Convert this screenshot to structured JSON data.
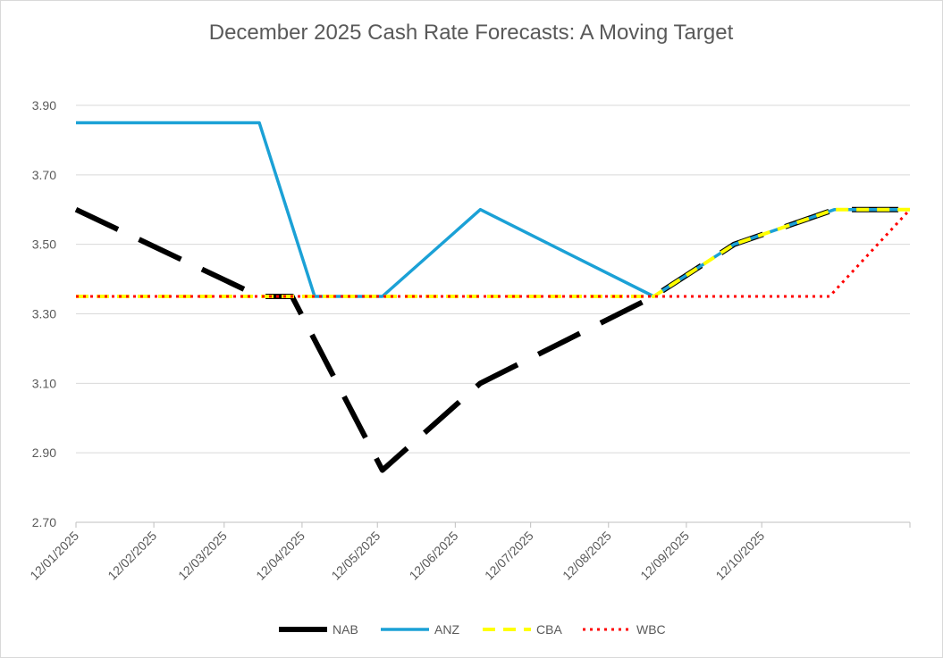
{
  "chart_data": {
    "type": "line",
    "title": "December 2025 Cash Rate Forecasts: A Moving Target",
    "xlabel": "",
    "ylabel": "",
    "ylim": [
      2.7,
      3.9
    ],
    "yticks": [
      "3.90",
      "3.70",
      "3.50",
      "3.30",
      "3.10",
      "2.90",
      "2.70"
    ],
    "xticks": [
      "12/01/2025",
      "12/02/2025",
      "12/03/2025",
      "12/04/2025",
      "12/05/2025",
      "12/06/2025",
      "12/07/2025",
      "12/08/2025",
      "12/09/2025",
      "12/10/2025"
    ],
    "x_range_days": [
      0,
      332
    ],
    "legend_position": "bottom",
    "grid": true,
    "series": [
      {
        "name": "NAB",
        "color": "#000000",
        "style": "long-dash",
        "points": [
          [
            0,
            3.6
          ],
          [
            73,
            3.35
          ],
          [
            86,
            3.35
          ],
          [
            122,
            2.85
          ],
          [
            161,
            3.1
          ],
          [
            230,
            3.35
          ],
          [
            262,
            3.5
          ],
          [
            302,
            3.6
          ],
          [
            332,
            3.6
          ]
        ]
      },
      {
        "name": "ANZ",
        "color": "#1ba1d6",
        "style": "solid",
        "points": [
          [
            0,
            3.85
          ],
          [
            73,
            3.85
          ],
          [
            95,
            3.35
          ],
          [
            122,
            3.35
          ],
          [
            161,
            3.6
          ],
          [
            230,
            3.35
          ],
          [
            262,
            3.5
          ],
          [
            302,
            3.6
          ],
          [
            332,
            3.6
          ]
        ]
      },
      {
        "name": "CBA",
        "color": "#ffff00",
        "style": "dash",
        "points": [
          [
            0,
            3.35
          ],
          [
            230,
            3.35
          ],
          [
            262,
            3.5
          ],
          [
            302,
            3.6
          ],
          [
            332,
            3.6
          ]
        ]
      },
      {
        "name": "WBC",
        "color": "#ff0000",
        "style": "dot",
        "points": [
          [
            0,
            3.35
          ],
          [
            300,
            3.35
          ],
          [
            332,
            3.6
          ]
        ]
      }
    ]
  }
}
